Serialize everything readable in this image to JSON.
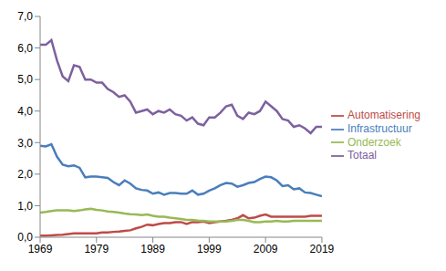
{
  "chart_data": {
    "type": "line",
    "x": [
      1969,
      1970,
      1971,
      1972,
      1973,
      1974,
      1975,
      1976,
      1977,
      1978,
      1979,
      1980,
      1981,
      1982,
      1983,
      1984,
      1985,
      1986,
      1987,
      1988,
      1989,
      1990,
      1991,
      1992,
      1993,
      1994,
      1995,
      1996,
      1997,
      1998,
      1999,
      2000,
      2001,
      2002,
      2003,
      2004,
      2005,
      2006,
      2007,
      2008,
      2009,
      2010,
      2011,
      2012,
      2013,
      2014,
      2015,
      2016,
      2017,
      2018,
      2019
    ],
    "xlim": [
      1969,
      2019
    ],
    "xticks": [
      1969,
      1979,
      1989,
      1999,
      2009,
      2019
    ],
    "ylim": [
      0,
      7
    ],
    "yticks": [
      {
        "value": 0,
        "label": "0,0"
      },
      {
        "value": 1,
        "label": "1,0"
      },
      {
        "value": 2,
        "label": "2,0"
      },
      {
        "value": 3,
        "label": "3,0"
      },
      {
        "value": 4,
        "label": "4,0"
      },
      {
        "value": 5,
        "label": "5,0"
      },
      {
        "value": 6,
        "label": "6,0"
      },
      {
        "value": 7,
        "label": "7,0"
      }
    ],
    "grid": false,
    "legend": "right",
    "series": [
      {
        "name": "Infrastructuur",
        "color": "#4a7ebb",
        "values": [
          2.9,
          2.88,
          2.95,
          2.55,
          2.3,
          2.25,
          2.28,
          2.2,
          1.9,
          1.92,
          1.92,
          1.9,
          1.88,
          1.75,
          1.65,
          1.8,
          1.7,
          1.55,
          1.5,
          1.48,
          1.38,
          1.42,
          1.35,
          1.4,
          1.4,
          1.38,
          1.38,
          1.48,
          1.35,
          1.38,
          1.48,
          1.55,
          1.65,
          1.72,
          1.7,
          1.6,
          1.65,
          1.72,
          1.75,
          1.85,
          1.92,
          1.9,
          1.8,
          1.62,
          1.65,
          1.52,
          1.55,
          1.42,
          1.4,
          1.35,
          1.3
        ]
      },
      {
        "name": "Automatisering",
        "color": "#be4b48",
        "values": [
          0.05,
          0.05,
          0.06,
          0.07,
          0.08,
          0.1,
          0.12,
          0.12,
          0.12,
          0.12,
          0.12,
          0.15,
          0.15,
          0.17,
          0.18,
          0.2,
          0.22,
          0.28,
          0.33,
          0.4,
          0.38,
          0.42,
          0.45,
          0.45,
          0.48,
          0.48,
          0.42,
          0.48,
          0.48,
          0.5,
          0.45,
          0.48,
          0.5,
          0.52,
          0.55,
          0.6,
          0.7,
          0.6,
          0.62,
          0.68,
          0.72,
          0.65,
          0.65,
          0.65,
          0.65,
          0.65,
          0.65,
          0.65,
          0.68,
          0.68,
          0.68
        ]
      },
      {
        "name": "Onderzoek",
        "color": "#98b954",
        "values": [
          0.78,
          0.8,
          0.83,
          0.85,
          0.85,
          0.85,
          0.83,
          0.85,
          0.88,
          0.9,
          0.87,
          0.85,
          0.82,
          0.8,
          0.78,
          0.75,
          0.73,
          0.72,
          0.7,
          0.72,
          0.68,
          0.65,
          0.65,
          0.62,
          0.6,
          0.58,
          0.55,
          0.55,
          0.53,
          0.52,
          0.5,
          0.5,
          0.5,
          0.5,
          0.52,
          0.55,
          0.55,
          0.52,
          0.48,
          0.48,
          0.5,
          0.5,
          0.52,
          0.5,
          0.5,
          0.52,
          0.52,
          0.52,
          0.52,
          0.52,
          0.52
        ]
      },
      {
        "name": "Totaal",
        "color": "#7d60a0",
        "values": [
          6.1,
          6.1,
          6.25,
          5.6,
          5.1,
          4.95,
          5.45,
          5.4,
          5.0,
          5.0,
          4.9,
          4.9,
          4.7,
          4.6,
          4.45,
          4.5,
          4.3,
          3.95,
          4.0,
          4.05,
          3.9,
          4.0,
          3.95,
          4.05,
          3.9,
          3.85,
          3.7,
          3.8,
          3.6,
          3.55,
          3.8,
          3.8,
          3.95,
          4.15,
          4.2,
          3.85,
          3.75,
          3.95,
          3.9,
          4.0,
          4.3,
          4.15,
          4.0,
          3.75,
          3.7,
          3.5,
          3.55,
          3.45,
          3.3,
          3.5,
          3.5
        ]
      }
    ]
  }
}
